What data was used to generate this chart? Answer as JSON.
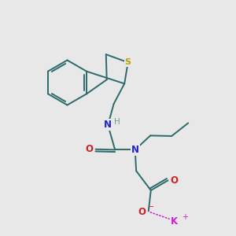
{
  "background_color": "#e8e8e8",
  "bond_color": "#2d6b6b",
  "S_color": "#b8a000",
  "N_color": "#2222cc",
  "O_color": "#cc2222",
  "H_color": "#6b9b9b",
  "K_color": "#cc22cc",
  "figsize": [
    3.0,
    3.0
  ],
  "dpi": 100,
  "lw": 1.4,
  "xlim": [
    0,
    10
  ],
  "ylim": [
    0,
    10
  ]
}
